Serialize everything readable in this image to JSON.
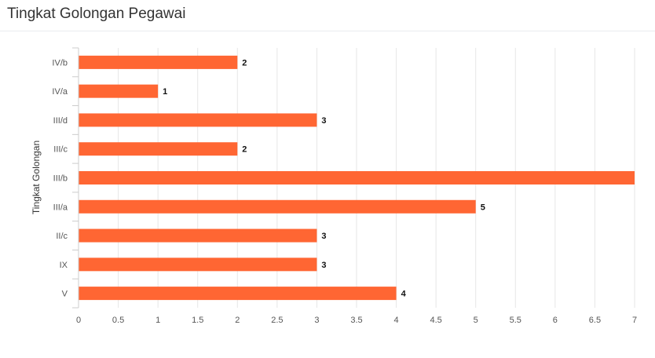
{
  "panel": {
    "title": "Tingkat Golongan Pegawai"
  },
  "colors": {
    "bar": "#ff6633",
    "grid": "#e6e6e6",
    "axis": "#cccccc"
  },
  "chart_data": {
    "type": "bar",
    "orientation": "horizontal",
    "title": "",
    "xlabel": "",
    "ylabel": "Tingkat Golongan",
    "categories": [
      "IV/b",
      "IV/a",
      "III/d",
      "III/c",
      "III/b",
      "III/a",
      "II/c",
      "IX",
      "V"
    ],
    "values": [
      2,
      1,
      3,
      2,
      7,
      5,
      3,
      3,
      4
    ],
    "data_labels": [
      "2",
      "1",
      "3",
      "2",
      "",
      "5",
      "3",
      "3",
      "4"
    ],
    "xlim": [
      0,
      7
    ],
    "x_ticks": [
      "0",
      "0.5",
      "1",
      "1.5",
      "2",
      "2.5",
      "3",
      "3.5",
      "4",
      "4.5",
      "5",
      "5.5",
      "6",
      "6.5",
      "7"
    ],
    "grid": true,
    "legend": "none"
  }
}
